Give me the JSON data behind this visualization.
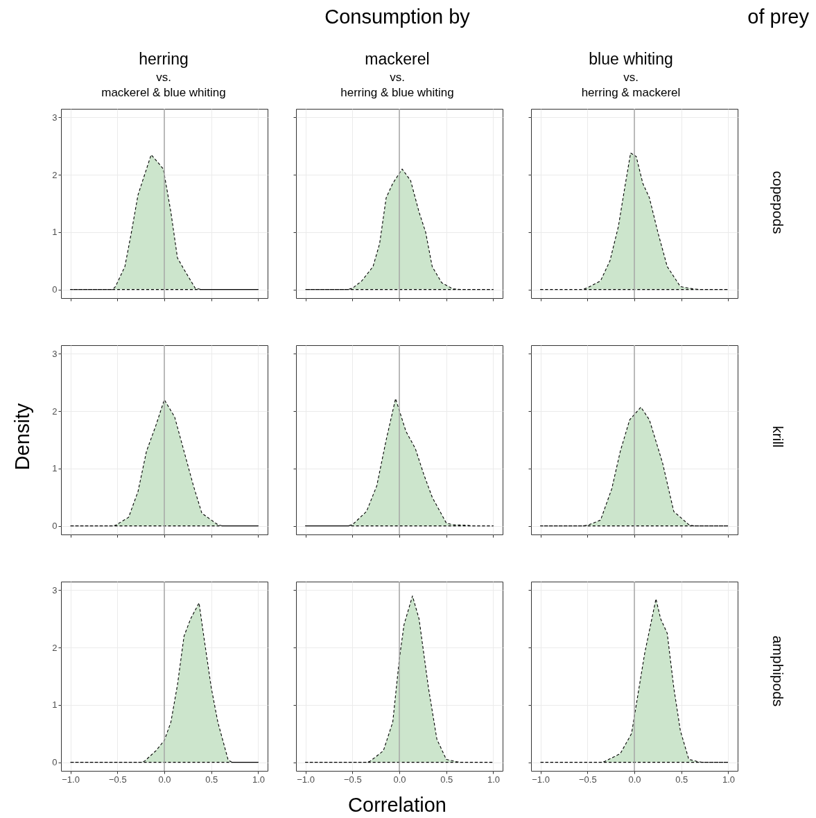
{
  "chart_data": [
    {
      "type": "area",
      "title": "herring",
      "subtitle": "vs.\nmackerel & blue whiting",
      "x": [
        -1,
        -0.55,
        -0.52,
        -0.42,
        -0.35,
        -0.28,
        -0.24,
        -0.14,
        -0.06,
        -0.01,
        0.07,
        0.14,
        0.21,
        0.33,
        0.4,
        1
      ],
      "values": [
        0,
        0,
        0.05,
        0.4,
        1.0,
        1.65,
        1.85,
        2.35,
        2.2,
        2.1,
        1.35,
        0.55,
        0.35,
        0.02,
        0,
        0
      ],
      "color": "#cce5cc",
      "line_style": "dashed",
      "xlim": [
        -1.1,
        1.1
      ],
      "ylim": [
        -0.15,
        3.15
      ],
      "xticks": [
        {
          "value": -1,
          "label": null
        },
        {
          "value": -0.5,
          "label": null
        },
        {
          "value": 0,
          "label": null
        },
        {
          "value": 0.5,
          "label": null
        },
        {
          "value": 1,
          "label": null
        }
      ],
      "yticks": [
        0,
        1,
        2,
        3
      ],
      "grid": true,
      "tick_labels": "y",
      "ref_lines": [
        {
          "axis": "x",
          "value": 0,
          "color": "#a6a6a6"
        }
      ]
    },
    {
      "type": "area",
      "title": "mackerel",
      "subtitle": "vs.\nherring & blue whiting",
      "annotations": [
        "Consumption by"
      ],
      "x": [
        -1,
        -0.55,
        -0.5,
        -0.4,
        -0.28,
        -0.21,
        -0.14,
        -0.07,
        0.03,
        0.12,
        0.21,
        0.28,
        0.35,
        0.45,
        0.57,
        0.65,
        1
      ],
      "values": [
        0,
        0,
        0.02,
        0.15,
        0.4,
        0.8,
        1.6,
        1.85,
        2.1,
        1.9,
        1.35,
        1.0,
        0.4,
        0.12,
        0.01,
        0,
        0
      ],
      "color": "#cce5cc",
      "line_style": "dashed",
      "xlim": [
        -1.1,
        1.1
      ],
      "ylim": [
        -0.15,
        3.15
      ],
      "xticks": [
        {
          "value": -1,
          "label": null
        },
        {
          "value": -0.5,
          "label": null
        },
        {
          "value": 0,
          "label": null
        },
        {
          "value": 0.5,
          "label": null
        },
        {
          "value": 1,
          "label": null
        }
      ],
      "yticks": [
        0,
        1,
        2,
        3
      ],
      "grid": true,
      "tick_labels": false,
      "ref_lines": [
        {
          "axis": "x",
          "value": 0,
          "color": "#a6a6a6"
        }
      ]
    },
    {
      "type": "area",
      "title": "blue whiting",
      "subtitle": "vs.\nherring & mackerel",
      "annotations": [
        "of prey"
      ],
      "y2label": "copepods",
      "x": [
        -1,
        -0.55,
        -0.5,
        -0.36,
        -0.26,
        -0.17,
        -0.1,
        -0.04,
        0.02,
        0.09,
        0.16,
        0.25,
        0.35,
        0.49,
        0.63,
        0.7,
        1
      ],
      "values": [
        0,
        0,
        0.03,
        0.15,
        0.5,
        1.1,
        1.8,
        2.38,
        2.32,
        1.85,
        1.6,
        1.0,
        0.4,
        0.05,
        0.01,
        0,
        0
      ],
      "color": "#cce5cc",
      "line_style": "dashed",
      "xlim": [
        -1.1,
        1.1
      ],
      "ylim": [
        -0.15,
        3.15
      ],
      "xticks": [
        {
          "value": -1,
          "label": null
        },
        {
          "value": -0.5,
          "label": null
        },
        {
          "value": 0,
          "label": null
        },
        {
          "value": 0.5,
          "label": null
        },
        {
          "value": 1,
          "label": null
        }
      ],
      "yticks": [
        0,
        1,
        2,
        3
      ],
      "grid": true,
      "tick_labels": false,
      "ref_lines": [
        {
          "axis": "x",
          "value": 0,
          "color": "#a6a6a6"
        }
      ]
    },
    {
      "type": "area",
      "ylabel": "Density",
      "x": [
        -1,
        -0.56,
        -0.52,
        -0.38,
        -0.28,
        -0.19,
        -0.09,
        0,
        0.11,
        0.21,
        0.31,
        0.4,
        0.57,
        0.62,
        1
      ],
      "values": [
        0,
        0,
        0.01,
        0.15,
        0.6,
        1.3,
        1.75,
        2.2,
        1.9,
        1.3,
        0.7,
        0.22,
        0.02,
        0,
        0
      ],
      "color": "#cce5cc",
      "line_style": "dashed",
      "xlim": [
        -1.1,
        1.1
      ],
      "ylim": [
        -0.15,
        3.15
      ],
      "xticks": [
        {
          "value": -1,
          "label": null
        },
        {
          "value": -0.5,
          "label": null
        },
        {
          "value": 0,
          "label": null
        },
        {
          "value": 0.5,
          "label": null
        },
        {
          "value": 1,
          "label": null
        }
      ],
      "yticks": [
        0,
        1,
        2,
        3
      ],
      "grid": true,
      "tick_labels": "y",
      "ref_lines": [
        {
          "axis": "x",
          "value": 0,
          "color": "#a6a6a6"
        }
      ]
    },
    {
      "type": "area",
      "x": [
        -1,
        -0.55,
        -0.5,
        -0.35,
        -0.24,
        -0.14,
        -0.04,
        0.07,
        0.17,
        0.26,
        0.35,
        0.5,
        0.57,
        0.73,
        0.78,
        1
      ],
      "values": [
        0,
        0,
        0.02,
        0.25,
        0.7,
        1.5,
        2.22,
        1.65,
        1.35,
        0.9,
        0.5,
        0.05,
        0.02,
        0.01,
        0,
        0
      ],
      "color": "#cce5cc",
      "line_style": "dashed",
      "xlim": [
        -1.1,
        1.1
      ],
      "ylim": [
        -0.15,
        3.15
      ],
      "xticks": [
        {
          "value": -1,
          "label": null
        },
        {
          "value": -0.5,
          "label": null
        },
        {
          "value": 0,
          "label": null
        },
        {
          "value": 0.5,
          "label": null
        },
        {
          "value": 1,
          "label": null
        }
      ],
      "yticks": [
        0,
        1,
        2,
        3
      ],
      "grid": true,
      "tick_labels": false,
      "ref_lines": [
        {
          "axis": "x",
          "value": 0,
          "color": "#a6a6a6"
        }
      ]
    },
    {
      "type": "area",
      "y2label": "krill",
      "x": [
        -1,
        -0.55,
        -0.5,
        -0.36,
        -0.24,
        -0.15,
        -0.05,
        0.07,
        0.16,
        0.3,
        0.42,
        0.49,
        0.58,
        0.63,
        1
      ],
      "values": [
        0,
        0,
        0.01,
        0.1,
        0.65,
        1.3,
        1.85,
        2.07,
        1.85,
        1.1,
        0.25,
        0.15,
        0.02,
        0,
        0
      ],
      "color": "#cce5cc",
      "line_style": "dashed",
      "xlim": [
        -1.1,
        1.1
      ],
      "ylim": [
        -0.15,
        3.15
      ],
      "xticks": [
        {
          "value": -1,
          "label": null
        },
        {
          "value": -0.5,
          "label": null
        },
        {
          "value": 0,
          "label": null
        },
        {
          "value": 0.5,
          "label": null
        },
        {
          "value": 1,
          "label": null
        }
      ],
      "yticks": [
        0,
        1,
        2,
        3
      ],
      "grid": true,
      "tick_labels": false,
      "ref_lines": [
        {
          "axis": "x",
          "value": 0,
          "color": "#a6a6a6"
        }
      ]
    },
    {
      "type": "area",
      "x": [
        -1,
        -0.25,
        -0.21,
        -0.09,
        0,
        0.07,
        0.14,
        0.21,
        0.28,
        0.37,
        0.42,
        0.5,
        0.57,
        0.68,
        0.72,
        1
      ],
      "values": [
        0,
        0,
        0.02,
        0.2,
        0.38,
        0.7,
        1.35,
        2.2,
        2.5,
        2.78,
        2.2,
        1.3,
        0.7,
        0.04,
        0,
        0
      ],
      "color": "#cce5cc",
      "line_style": "dashed",
      "xlim": [
        -1.1,
        1.1
      ],
      "ylim": [
        -0.15,
        3.15
      ],
      "xticks": [
        {
          "value": -1,
          "label": "−1.0"
        },
        {
          "value": -0.5,
          "label": "−0.5"
        },
        {
          "value": 0,
          "label": "0.0"
        },
        {
          "value": 0.5,
          "label": "0.5"
        },
        {
          "value": 1,
          "label": "1.0"
        }
      ],
      "yticks": [
        0,
        1,
        2,
        3
      ],
      "grid": true,
      "ref_lines": [
        {
          "axis": "x",
          "value": 0,
          "color": "#a6a6a6"
        }
      ]
    },
    {
      "type": "area",
      "xlabel": "Correlation",
      "x": [
        -1,
        -0.35,
        -0.31,
        -0.17,
        -0.07,
        0,
        0.05,
        0.14,
        0.21,
        0.31,
        0.4,
        0.5,
        0.61,
        0.66,
        1
      ],
      "values": [
        0,
        0,
        0.02,
        0.2,
        0.7,
        1.8,
        2.4,
        2.9,
        2.5,
        1.3,
        0.4,
        0.05,
        0.01,
        0,
        0
      ],
      "color": "#cce5cc",
      "line_style": "dashed",
      "xlim": [
        -1.1,
        1.1
      ],
      "ylim": [
        -0.15,
        3.15
      ],
      "xticks": [
        {
          "value": -1,
          "label": "−1.0"
        },
        {
          "value": -0.5,
          "label": "−0.5"
        },
        {
          "value": 0,
          "label": "0.0"
        },
        {
          "value": 0.5,
          "label": "0.5"
        },
        {
          "value": 1,
          "label": "1.0"
        }
      ],
      "yticks": [
        0,
        1,
        2,
        3
      ],
      "grid": true,
      "tick_labels": "x",
      "ref_lines": [
        {
          "axis": "x",
          "value": 0,
          "color": "#a6a6a6"
        }
      ]
    },
    {
      "type": "area",
      "y2label": "amphipods",
      "x": [
        -1,
        -0.35,
        -0.31,
        -0.15,
        -0.03,
        0.02,
        0.11,
        0.23,
        0.28,
        0.35,
        0.42,
        0.49,
        0.58,
        0.68,
        0.72,
        1
      ],
      "values": [
        0,
        0,
        0.02,
        0.15,
        0.5,
        1.0,
        1.9,
        2.85,
        2.5,
        2.25,
        1.3,
        0.55,
        0.05,
        0.01,
        0,
        0
      ],
      "color": "#cce5cc",
      "line_style": "dashed",
      "xlim": [
        -1.1,
        1.1
      ],
      "ylim": [
        -0.15,
        3.15
      ],
      "xticks": [
        {
          "value": -1,
          "label": "−1.0"
        },
        {
          "value": -0.5,
          "label": "−0.5"
        },
        {
          "value": 0,
          "label": "0.0"
        },
        {
          "value": 0.5,
          "label": "0.5"
        },
        {
          "value": 1,
          "label": "1.0"
        }
      ],
      "yticks": [
        0,
        1,
        2,
        3
      ],
      "grid": true,
      "tick_labels": "x",
      "ref_lines": [
        {
          "axis": "x",
          "value": 0,
          "color": "#a6a6a6"
        }
      ]
    }
  ]
}
